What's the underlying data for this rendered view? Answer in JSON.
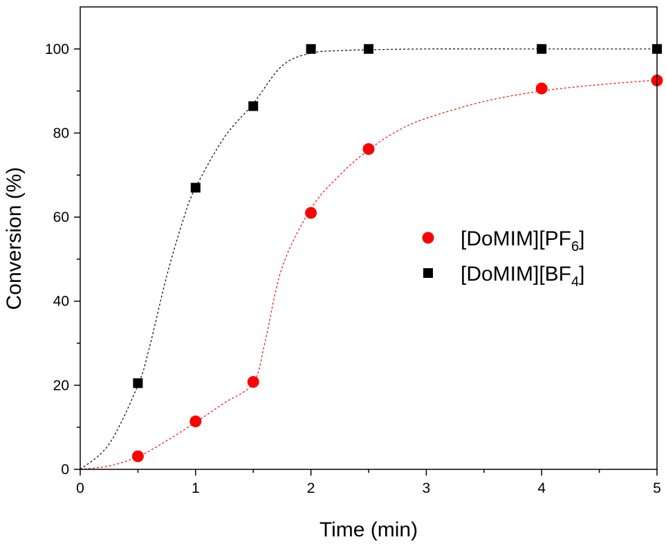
{
  "chart_data": {
    "type": "scatter",
    "xlabel": "Time (min)",
    "ylabel": "Conversion (%)",
    "xlim": [
      0,
      5
    ],
    "ylim": [
      0,
      110
    ],
    "xticks": [
      "0",
      "1",
      "2",
      "3",
      "4",
      "5"
    ],
    "yticks": [
      "0",
      "20",
      "40",
      "60",
      "80",
      "100"
    ],
    "grid": false,
    "legend_position": "center-right",
    "series": [
      {
        "name": "[DoMIM][PF6]",
        "name_main": "[DoMIM][PF",
        "name_sub": "6",
        "name_end": "]",
        "marker": "circle",
        "color": "#ff0000",
        "fit_line": "dashed",
        "x": [
          0.5,
          1.0,
          1.5,
          2.0,
          2.5,
          4.0,
          5.0
        ],
        "y": [
          3.1,
          11.4,
          20.8,
          61.0,
          76.2,
          90.6,
          92.5
        ],
        "fit_x": [
          0,
          0.25,
          0.5,
          0.75,
          1.0,
          1.25,
          1.5,
          1.6,
          1.75,
          2.0,
          2.25,
          2.5,
          2.75,
          3.0,
          3.5,
          4.0,
          4.5,
          5.0
        ],
        "fit_y": [
          0,
          0.8,
          3.0,
          6.8,
          11.2,
          15.8,
          20.5,
          30.0,
          48.0,
          62.0,
          70.0,
          76.0,
          80.5,
          83.5,
          87.5,
          90.0,
          91.5,
          92.6
        ]
      },
      {
        "name": "[DoMIM][BF4]",
        "name_main": "[DoMIM][BF",
        "name_sub": "4",
        "name_end": "]",
        "marker": "square",
        "color": "#000000",
        "fit_line": "dashed",
        "x": [
          0.5,
          1.0,
          1.5,
          2.0,
          2.5,
          4.0,
          5.0
        ],
        "y": [
          20.5,
          67.0,
          86.4,
          100,
          100,
          100,
          100
        ],
        "fit_x": [
          0,
          0.25,
          0.5,
          0.6,
          0.75,
          0.9,
          1.0,
          1.25,
          1.5,
          1.75,
          2.0,
          2.25,
          2.5,
          3.0,
          4.0,
          5.0
        ],
        "fit_y": [
          0,
          6.0,
          20.0,
          29.0,
          46.0,
          60.0,
          67.0,
          79.0,
          87.0,
          96.0,
          99.0,
          99.6,
          99.8,
          100,
          100,
          100
        ]
      }
    ]
  }
}
